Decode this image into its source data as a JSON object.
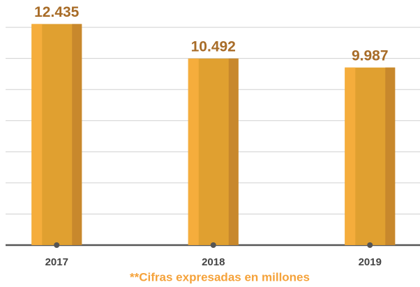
{
  "chart_data": {
    "type": "bar",
    "categories": [
      "2017",
      "2018",
      "2019"
    ],
    "values": [
      12435,
      10492,
      9987
    ],
    "value_labels": [
      "12.435",
      "10.492",
      "9.987"
    ],
    "color": "#e0a030",
    "ylim": [
      0,
      13000
    ],
    "yticks": [
      0,
      1750,
      3500,
      5250,
      7000,
      8750,
      10500,
      12250
    ],
    "grid": true,
    "note": "**Cifras expresadas en millones"
  }
}
